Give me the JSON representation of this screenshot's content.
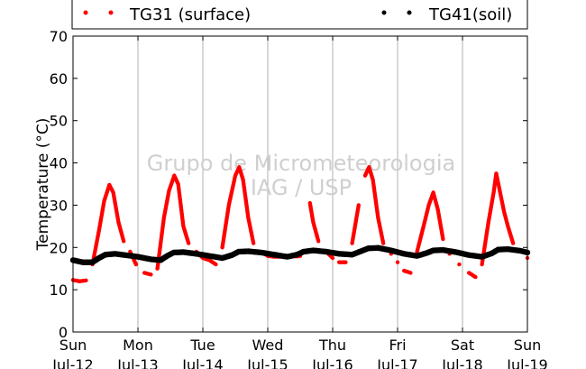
{
  "chart_data": {
    "type": "scatter",
    "ylabel": "Temperature (°C)",
    "ylim": [
      0,
      70
    ],
    "yticks": [
      0,
      10,
      20,
      30,
      40,
      50,
      60,
      70
    ],
    "x_range_days": [
      12,
      19
    ],
    "xticks": [
      {
        "day": 12,
        "weekday": "Sun",
        "date": "Jul-12"
      },
      {
        "day": 13,
        "weekday": "Mon",
        "date": "Jul-13"
      },
      {
        "day": 14,
        "weekday": "Tue",
        "date": "Jul-14"
      },
      {
        "day": 15,
        "weekday": "Wed",
        "date": "Jul-15"
      },
      {
        "day": 16,
        "weekday": "Thu",
        "date": "Jul-16"
      },
      {
        "day": 17,
        "weekday": "Fri",
        "date": "Jul-17"
      },
      {
        "day": 18,
        "weekday": "Sat",
        "date": "Jul-18"
      },
      {
        "day": 19,
        "weekday": "Sun",
        "date": "Jul-19"
      }
    ],
    "grid": "vertical",
    "legend_position": "top",
    "watermark": [
      "Grupo de Micrometeorologia",
      "IAG / USP"
    ],
    "series": [
      {
        "name": "TG31 (surface)",
        "color": "#ff0000",
        "points": [
          [
            12.0,
            12.3
          ],
          [
            12.1,
            12.0
          ],
          [
            12.2,
            12.2
          ],
          [
            12.3,
            16.0
          ],
          [
            12.4,
            24.0
          ],
          [
            12.48,
            31.0
          ],
          [
            12.56,
            34.8
          ],
          [
            12.62,
            33.0
          ],
          [
            12.7,
            26.0
          ],
          [
            12.78,
            21.5
          ],
          [
            12.88,
            19.0
          ],
          [
            12.97,
            16.0
          ],
          [
            13.1,
            14.0
          ],
          [
            13.2,
            13.6
          ],
          [
            13.3,
            15.0
          ],
          [
            13.4,
            27.0
          ],
          [
            13.48,
            33.5
          ],
          [
            13.56,
            37.0
          ],
          [
            13.62,
            35.0
          ],
          [
            13.7,
            25.0
          ],
          [
            13.78,
            21.0
          ],
          [
            13.9,
            19.0
          ],
          [
            14.0,
            17.5
          ],
          [
            14.1,
            17.0
          ],
          [
            14.2,
            16.0
          ],
          [
            14.3,
            20.0
          ],
          [
            14.4,
            30.0
          ],
          [
            14.5,
            37.0
          ],
          [
            14.56,
            39.0
          ],
          [
            14.62,
            36.0
          ],
          [
            14.7,
            27.0
          ],
          [
            14.78,
            21.0
          ],
          [
            14.9,
            19.0
          ],
          [
            15.0,
            18.0
          ],
          [
            15.1,
            17.8
          ],
          [
            15.2,
            17.8
          ],
          [
            15.3,
            17.9
          ],
          [
            15.4,
            17.9
          ],
          [
            15.46,
            17.9
          ],
          [
            15.5,
            18.0
          ],
          [
            15.65,
            30.5
          ],
          [
            15.7,
            26.0
          ],
          [
            15.78,
            21.5
          ],
          [
            15.9,
            19.0
          ],
          [
            16.0,
            17.5
          ],
          [
            16.1,
            16.5
          ],
          [
            16.2,
            16.5
          ],
          [
            16.3,
            21.0
          ],
          [
            16.4,
            30.0
          ],
          [
            16.5,
            37.0
          ],
          [
            16.56,
            39.0
          ],
          [
            16.62,
            36.0
          ],
          [
            16.7,
            27.0
          ],
          [
            16.78,
            21.0
          ],
          [
            16.9,
            18.5
          ],
          [
            17.0,
            16.5
          ],
          [
            17.1,
            14.5
          ],
          [
            17.2,
            14.0
          ],
          [
            17.3,
            19.0
          ],
          [
            17.4,
            25.0
          ],
          [
            17.48,
            30.0
          ],
          [
            17.55,
            33.0
          ],
          [
            17.62,
            29.0
          ],
          [
            17.7,
            22.0
          ],
          [
            17.8,
            18.5
          ],
          [
            17.95,
            16.0
          ],
          [
            18.1,
            14.0
          ],
          [
            18.2,
            13.0
          ],
          [
            18.3,
            16.0
          ],
          [
            18.4,
            26.0
          ],
          [
            18.48,
            33.0
          ],
          [
            18.52,
            37.5
          ],
          [
            18.58,
            33.0
          ],
          [
            18.64,
            28.5
          ],
          [
            18.7,
            25.0
          ],
          [
            18.78,
            21.0
          ],
          [
            18.9,
            19.0
          ],
          [
            19.0,
            17.5
          ]
        ]
      },
      {
        "name": "TG41(soil)",
        "color": "#000000",
        "points": [
          [
            12.0,
            17.0
          ],
          [
            12.15,
            16.5
          ],
          [
            12.3,
            16.5
          ],
          [
            12.4,
            17.5
          ],
          [
            12.5,
            18.3
          ],
          [
            12.65,
            18.5
          ],
          [
            12.8,
            18.2
          ],
          [
            13.0,
            17.8
          ],
          [
            13.2,
            17.2
          ],
          [
            13.35,
            17.0
          ],
          [
            13.45,
            18.0
          ],
          [
            13.55,
            18.8
          ],
          [
            13.7,
            18.9
          ],
          [
            13.9,
            18.5
          ],
          [
            14.1,
            18.0
          ],
          [
            14.3,
            17.5
          ],
          [
            14.45,
            18.2
          ],
          [
            14.55,
            19.0
          ],
          [
            14.7,
            19.1
          ],
          [
            14.9,
            18.8
          ],
          [
            15.1,
            18.3
          ],
          [
            15.3,
            17.8
          ],
          [
            15.45,
            18.3
          ],
          [
            15.55,
            19.0
          ],
          [
            15.7,
            19.3
          ],
          [
            15.9,
            19.0
          ],
          [
            16.1,
            18.5
          ],
          [
            16.3,
            18.3
          ],
          [
            16.45,
            19.2
          ],
          [
            16.55,
            19.8
          ],
          [
            16.7,
            19.9
          ],
          [
            16.9,
            19.3
          ],
          [
            17.1,
            18.5
          ],
          [
            17.3,
            18.0
          ],
          [
            17.45,
            18.7
          ],
          [
            17.55,
            19.3
          ],
          [
            17.7,
            19.4
          ],
          [
            17.9,
            18.9
          ],
          [
            18.1,
            18.2
          ],
          [
            18.3,
            17.8
          ],
          [
            18.45,
            18.6
          ],
          [
            18.55,
            19.5
          ],
          [
            18.7,
            19.6
          ],
          [
            18.9,
            19.2
          ],
          [
            19.0,
            18.8
          ]
        ]
      }
    ]
  }
}
